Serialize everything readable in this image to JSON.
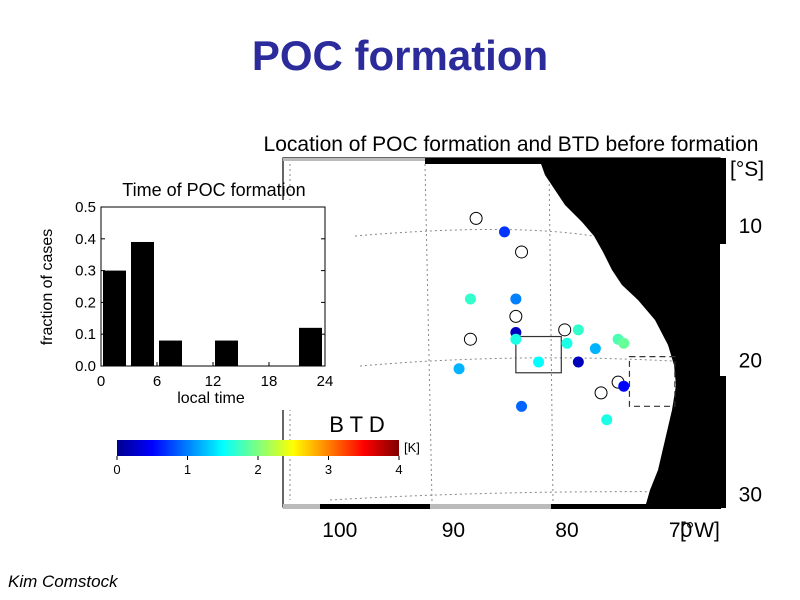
{
  "slide": {
    "title": "POC formation",
    "author": "Kim Comstock"
  },
  "colors": {
    "title": "#2b2b9c",
    "bars": "#000000",
    "land": "#000000"
  },
  "chart_data": [
    {
      "type": "bar",
      "title": "Time of POC formation",
      "xlabel": "local time",
      "ylabel": "fraction of cases",
      "categories": [
        "0-3",
        "3-6",
        "6-9",
        "9-12",
        "12-15",
        "15-18",
        "18-21",
        "21-24"
      ],
      "bin_starts": [
        0,
        3,
        6,
        9,
        12,
        15,
        18,
        21
      ],
      "bin_width": 3,
      "values": [
        0.3,
        0.39,
        0.08,
        0,
        0.08,
        0,
        0,
        0.12
      ],
      "xlim": [
        0,
        24
      ],
      "ylim": [
        0,
        0.5
      ],
      "xticks": [
        0,
        6,
        12,
        18,
        24
      ],
      "yticks": [
        0.0,
        0.1,
        0.2,
        0.3,
        0.4,
        0.5
      ],
      "ytick_labels": [
        "0.0",
        "0.1",
        "0.2",
        "0.3",
        "0.4",
        "0.5"
      ]
    },
    {
      "type": "scatter",
      "title": "Location of POC formation and BTD before formation",
      "xlabel_unit": "[°W]",
      "ylabel_unit": "[°S]",
      "xlim": [
        105,
        66
      ],
      "ylim": [
        31,
        5
      ],
      "xticks": [
        100,
        90,
        80,
        70
      ],
      "yticks": [
        10,
        20,
        30
      ],
      "colorbar": {
        "label": "B T D",
        "unit": "[K]",
        "range": [
          0,
          4
        ],
        "ticks": [
          0,
          1,
          2,
          3,
          4
        ]
      },
      "points": [
        {
          "lon": 85.5,
          "lat": 10.5,
          "btd": 0.7
        },
        {
          "lon": 88.5,
          "lat": 15.5,
          "btd": 1.7
        },
        {
          "lon": 84.5,
          "lat": 15.5,
          "btd": 1.0
        },
        {
          "lon": 84.5,
          "lat": 18.0,
          "btd": 0.2
        },
        {
          "lon": 84.5,
          "lat": 18.5,
          "btd": 1.6
        },
        {
          "lon": 79.0,
          "lat": 17.8,
          "btd": 1.7
        },
        {
          "lon": 80.0,
          "lat": 18.8,
          "btd": 1.6
        },
        {
          "lon": 77.5,
          "lat": 19.2,
          "btd": 1.2
        },
        {
          "lon": 75.5,
          "lat": 18.5,
          "btd": 1.8
        },
        {
          "lon": 75.0,
          "lat": 18.8,
          "btd": 1.9
        },
        {
          "lon": 82.5,
          "lat": 20.2,
          "btd": 1.5
        },
        {
          "lon": 89.5,
          "lat": 20.7,
          "btd": 1.2
        },
        {
          "lon": 79.0,
          "lat": 20.2,
          "btd": 0.2
        },
        {
          "lon": 75.0,
          "lat": 22.0,
          "btd": 0.5
        },
        {
          "lon": 84.0,
          "lat": 23.5,
          "btd": 0.9
        },
        {
          "lon": 76.5,
          "lat": 24.5,
          "btd": 1.6
        }
      ],
      "open_points": [
        {
          "lon": 88.0,
          "lat": 9.5
        },
        {
          "lon": 84.0,
          "lat": 12.0
        },
        {
          "lon": 84.5,
          "lat": 16.8
        },
        {
          "lon": 80.2,
          "lat": 17.8
        },
        {
          "lon": 88.5,
          "lat": 18.5
        },
        {
          "lon": 75.5,
          "lat": 21.7
        },
        {
          "lon": 77.0,
          "lat": 22.5
        }
      ],
      "boxes": [
        {
          "style": "solid",
          "lon": [
            84.5,
            80.5
          ],
          "lat": [
            18.3,
            21.0
          ]
        },
        {
          "style": "dashed",
          "lon": [
            74.5,
            70.5
          ],
          "lat": [
            19.8,
            23.5
          ]
        }
      ]
    }
  ]
}
